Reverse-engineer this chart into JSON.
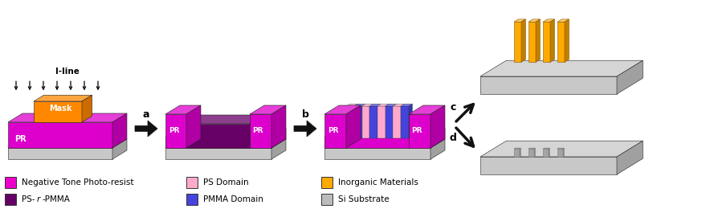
{
  "bg_color": "#ffffff",
  "pr_color": "#dd00cc",
  "pr_top_color": "#ee55dd",
  "pr_side_color": "#aa0099",
  "mask_color": "#ff8800",
  "mask_top_color": "#ffaa44",
  "mask_side_color": "#cc6600",
  "ps_pmma_color": "#660066",
  "ps_pmma_top_color": "#993399",
  "ps_pmma_side_color": "#440044",
  "si_color": "#c8c8c8",
  "si_top_color": "#e0e0e0",
  "si_side_color": "#a0a0a0",
  "ps_domain_color": "#ffaacc",
  "pmma_domain_color": "#4444dd",
  "inorganic_color": "#ffaa00",
  "inorganic_top_color": "#ffcc44",
  "inorganic_side_color": "#cc7700",
  "groove_color": "#b0b0b0",
  "groove_top_color": "#c8c8c8",
  "groove_side_color": "#909090",
  "arrow_color": "#111111",
  "label_a": "a",
  "label_b": "b",
  "label_c": "c",
  "label_d": "d",
  "iline_label": "I-line",
  "mask_label": "Mask",
  "pr_label": "PR",
  "text_color": "#000000",
  "white": "#ffffff"
}
